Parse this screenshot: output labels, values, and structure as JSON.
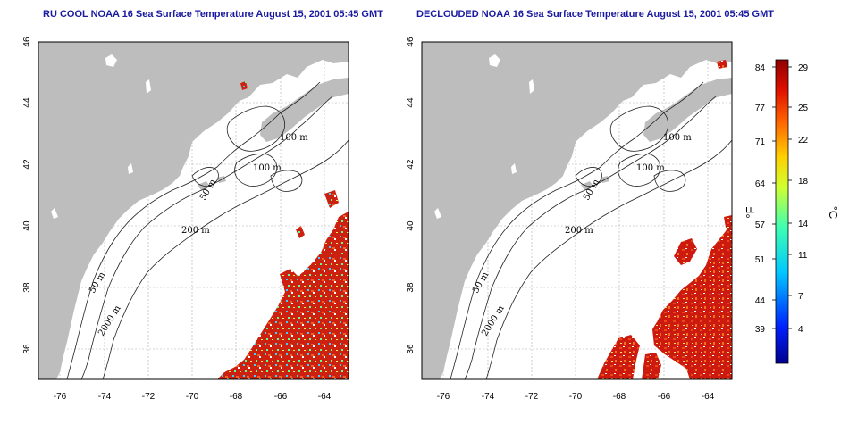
{
  "titles": {
    "left": "RU COOL NOAA 16 Sea Surface Temperature August 15, 2001 05:45 GMT",
    "right": "DECLOUDED NOAA 16 Sea Surface Temperature August 15, 2001 05:45 GMT"
  },
  "axes": {
    "x_ticks": [
      "-76",
      "-74",
      "-72",
      "-70",
      "-68",
      "-66",
      "-64"
    ],
    "y_ticks": [
      "46",
      "44",
      "42",
      "40",
      "38",
      "36"
    ]
  },
  "contour_labels": {
    "c100a": "100 m",
    "c100b": "100 m",
    "c50a": "50 m",
    "c200": "200 m",
    "c50b": "50 m",
    "c2000": "2000 m"
  },
  "colorbar": {
    "fahrenheit_unit": "°F",
    "celsius_unit": "°C",
    "fahrenheit_ticks": [
      "84",
      "77",
      "71",
      "64",
      "57",
      "51",
      "44",
      "39"
    ],
    "celsius_ticks": [
      "29",
      "25",
      "22",
      "18",
      "14",
      "11",
      "7",
      "4"
    ]
  },
  "colors": {
    "land": "#bdbdbd",
    "title": "#1a1aa0",
    "sst_warm": "#cc1a10",
    "sst_hot": "#e03a10"
  }
}
